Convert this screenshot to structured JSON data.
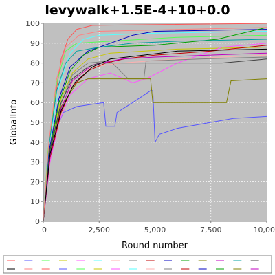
{
  "chart_data": {
    "type": "line",
    "title": "levywalk+1.5E-4+10+0.0",
    "xlabel": "Round number",
    "ylabel": "GlobalInfo",
    "xlim": [
      0,
      10000
    ],
    "ylim": [
      0,
      100
    ],
    "x_ticks": [
      "0",
      "2,500",
      "5,000",
      "7,500",
      "10,00"
    ],
    "y_ticks": [
      "0",
      "10",
      "20",
      "30",
      "40",
      "50",
      "60",
      "70",
      "80",
      "90",
      "100"
    ],
    "grid": true,
    "legend_position": "bottom",
    "legend_entry_count": 30,
    "plot_background": "#c0c0c0",
    "series": [
      {
        "color": "#ff5555",
        "points": [
          [
            0,
            0
          ],
          [
            200,
            33
          ],
          [
            500,
            60
          ],
          [
            800,
            82
          ],
          [
            1100,
            92
          ],
          [
            1500,
            97
          ],
          [
            2200,
            99
          ],
          [
            10000,
            100
          ]
        ]
      },
      {
        "color": "#5555ff",
        "points": [
          [
            0,
            0
          ],
          [
            200,
            30
          ],
          [
            500,
            45
          ],
          [
            900,
            55
          ],
          [
            1500,
            58
          ],
          [
            2700,
            60
          ],
          [
            2800,
            48
          ],
          [
            3200,
            48
          ],
          [
            3300,
            55
          ],
          [
            4000,
            60
          ],
          [
            4800,
            66
          ],
          [
            4900,
            66
          ],
          [
            5000,
            40
          ],
          [
            5200,
            44
          ],
          [
            6000,
            47
          ],
          [
            7500,
            50
          ],
          [
            8500,
            52
          ],
          [
            10000,
            53
          ]
        ]
      },
      {
        "color": "#55ff55",
        "points": [
          [
            0,
            0
          ],
          [
            200,
            35
          ],
          [
            600,
            70
          ],
          [
            1000,
            86
          ],
          [
            1500,
            90
          ],
          [
            3000,
            91
          ],
          [
            6000,
            93
          ],
          [
            10000,
            94
          ]
        ]
      },
      {
        "color": "#c8c800",
        "points": [
          [
            0,
            0
          ],
          [
            300,
            38
          ],
          [
            800,
            62
          ],
          [
            1300,
            75
          ],
          [
            2000,
            82
          ],
          [
            3000,
            85
          ],
          [
            6000,
            87
          ],
          [
            10000,
            88
          ]
        ]
      },
      {
        "color": "#ff55ff",
        "points": [
          [
            0,
            0
          ],
          [
            300,
            30
          ],
          [
            700,
            50
          ],
          [
            1200,
            64
          ],
          [
            2000,
            72
          ],
          [
            3000,
            75
          ],
          [
            4000,
            70
          ],
          [
            4600,
            72
          ],
          [
            6000,
            80
          ],
          [
            8000,
            88
          ],
          [
            10000,
            90
          ]
        ]
      },
      {
        "color": "#55ffff",
        "points": [
          [
            0,
            0
          ],
          [
            250,
            38
          ],
          [
            700,
            68
          ],
          [
            1200,
            85
          ],
          [
            1800,
            92
          ],
          [
            2500,
            94
          ],
          [
            5000,
            95
          ],
          [
            10000,
            96
          ]
        ]
      },
      {
        "color": "#ffafaf",
        "points": [
          [
            0,
            0
          ],
          [
            300,
            33
          ],
          [
            800,
            58
          ],
          [
            1400,
            72
          ],
          [
            2200,
            78
          ],
          [
            3500,
            80
          ],
          [
            6000,
            82
          ],
          [
            10000,
            84
          ]
        ]
      },
      {
        "color": "#808080",
        "points": [
          [
            0,
            0
          ],
          [
            300,
            35
          ],
          [
            800,
            60
          ],
          [
            1300,
            74
          ],
          [
            2000,
            80
          ],
          [
            3000,
            81
          ],
          [
            3800,
            72
          ],
          [
            4500,
            72
          ],
          [
            4600,
            81
          ],
          [
            7000,
            82
          ],
          [
            10000,
            83
          ]
        ]
      },
      {
        "color": "#c00000",
        "points": [
          [
            0,
            0
          ],
          [
            300,
            32
          ],
          [
            800,
            55
          ],
          [
            1300,
            68
          ],
          [
            2000,
            76
          ],
          [
            2800,
            80
          ],
          [
            3600,
            82
          ],
          [
            5000,
            84
          ],
          [
            7500,
            86
          ],
          [
            10000,
            89
          ]
        ]
      },
      {
        "color": "#0000c0",
        "points": [
          [
            0,
            0
          ],
          [
            250,
            35
          ],
          [
            700,
            62
          ],
          [
            1200,
            78
          ],
          [
            2000,
            86
          ],
          [
            3000,
            90
          ],
          [
            4000,
            94
          ],
          [
            5000,
            96
          ],
          [
            10000,
            97
          ]
        ]
      },
      {
        "color": "#00a000",
        "points": [
          [
            0,
            0
          ],
          [
            300,
            36
          ],
          [
            700,
            60
          ],
          [
            1200,
            76
          ],
          [
            1800,
            84
          ],
          [
            2500,
            88
          ],
          [
            5000,
            89
          ],
          [
            7800,
            92
          ],
          [
            10000,
            98
          ]
        ]
      },
      {
        "color": "#808000",
        "points": [
          [
            0,
            0
          ],
          [
            300,
            36
          ],
          [
            800,
            58
          ],
          [
            1500,
            70
          ],
          [
            2000,
            72
          ],
          [
            4800,
            72
          ],
          [
            4900,
            60
          ],
          [
            6000,
            60
          ],
          [
            6500,
            60
          ],
          [
            8200,
            60
          ],
          [
            8400,
            71
          ],
          [
            10000,
            72
          ]
        ]
      },
      {
        "color": "#c000c0",
        "points": [
          [
            0,
            0
          ],
          [
            300,
            33
          ],
          [
            800,
            57
          ],
          [
            1300,
            71
          ],
          [
            2200,
            79
          ],
          [
            3500,
            82
          ],
          [
            5000,
            83
          ],
          [
            10000,
            85
          ]
        ]
      },
      {
        "color": "#00a0a0",
        "points": [
          [
            0,
            0
          ],
          [
            250,
            38
          ],
          [
            600,
            66
          ],
          [
            1000,
            80
          ],
          [
            1500,
            86
          ],
          [
            2500,
            88
          ],
          [
            4000,
            90
          ],
          [
            6000,
            91
          ],
          [
            10000,
            92
          ]
        ]
      },
      {
        "color": "#404040",
        "points": [
          [
            0,
            0
          ],
          [
            300,
            36
          ],
          [
            800,
            60
          ],
          [
            1300,
            72
          ],
          [
            2000,
            78
          ],
          [
            2500,
            80
          ],
          [
            8000,
            80
          ],
          [
            10000,
            82
          ]
        ]
      },
      {
        "color": "#000000",
        "points": [
          [
            0,
            0
          ],
          [
            300,
            34
          ],
          [
            800,
            56
          ],
          [
            1400,
            70
          ],
          [
            2200,
            78
          ],
          [
            3000,
            82
          ],
          [
            4500,
            84
          ],
          [
            6000,
            86
          ],
          [
            10000,
            87
          ]
        ]
      },
      {
        "color": "#ff8080",
        "points": [
          [
            0,
            0
          ],
          [
            250,
            40
          ],
          [
            600,
            72
          ],
          [
            1000,
            88
          ],
          [
            1600,
            94
          ],
          [
            2500,
            96
          ],
          [
            10000,
            98
          ]
        ]
      }
    ]
  }
}
